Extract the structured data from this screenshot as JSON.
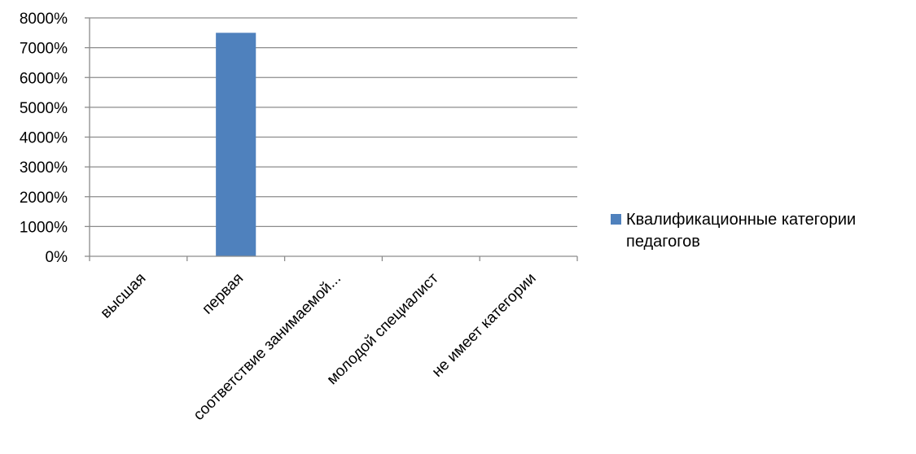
{
  "chart_data": {
    "type": "bar",
    "categories": [
      "высшая",
      "первая",
      "соответствие занимаемой...",
      "молодой специалист",
      "не имеет категории"
    ],
    "series": [
      {
        "name": "Квалификационные категории педагогов",
        "values": [
          0,
          7500,
          0,
          0,
          0
        ],
        "color": "#4F81BD"
      }
    ],
    "y_ticks": [
      "0%",
      "1000%",
      "2000%",
      "3000%",
      "4000%",
      "5000%",
      "6000%",
      "7000%",
      "8000%"
    ],
    "ylim": [
      0,
      8000
    ],
    "y_unit": "%",
    "grid": true,
    "legend": {
      "position": "right",
      "lines": [
        "Квалификационные категории",
        "педагогов"
      ]
    },
    "colors": {
      "bar": "#4F81BD",
      "grid": "#8C8C8C",
      "axis": "#8C8C8C"
    }
  }
}
